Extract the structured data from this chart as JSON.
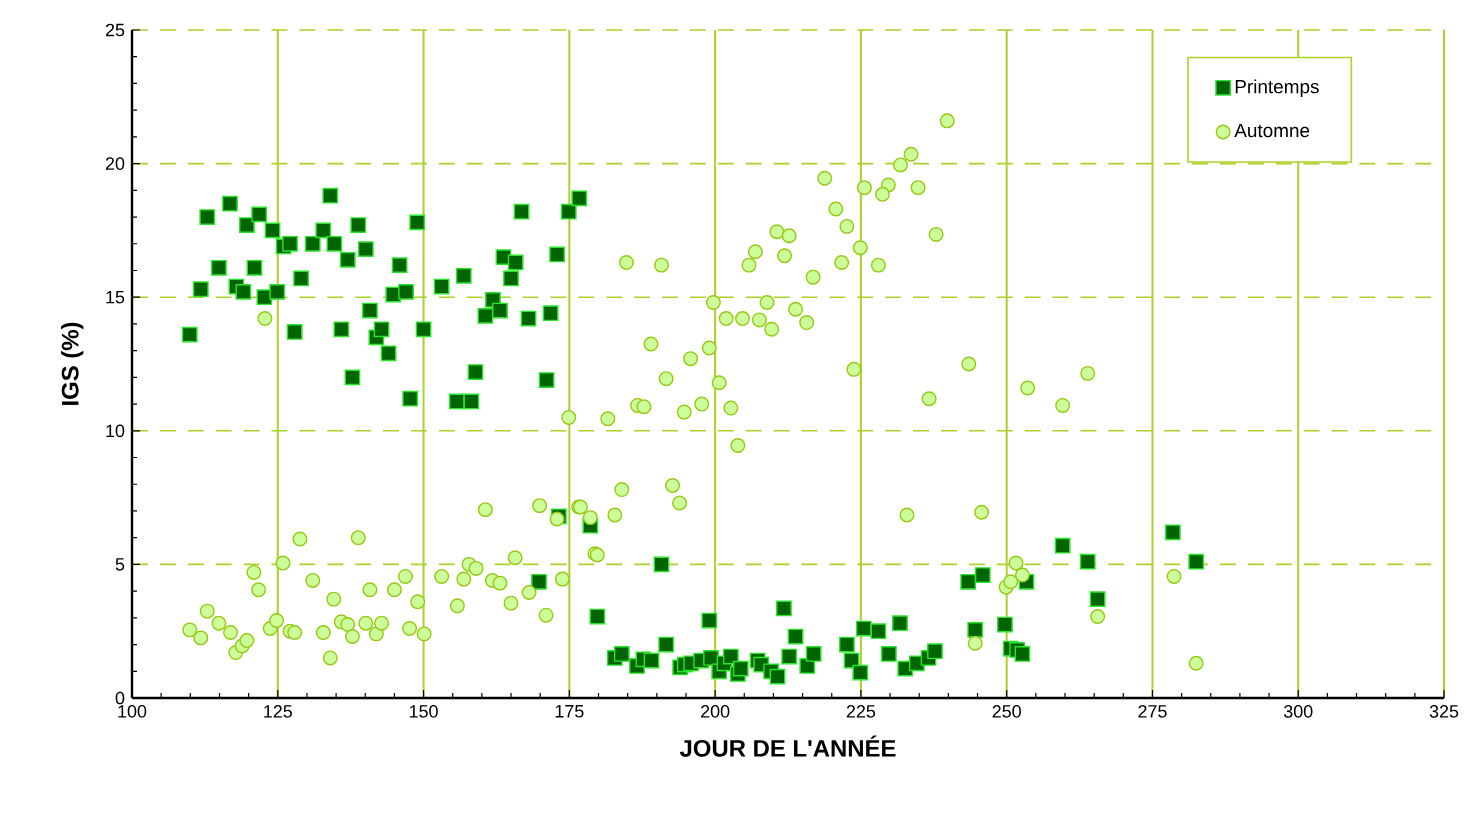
{
  "chart_data": {
    "type": "scatter",
    "xlabel": "JOUR DE L'ANNÉE",
    "ylabel": "IGS  (%)",
    "xlim": [
      100,
      325
    ],
    "xticks": [
      100,
      125,
      150,
      175,
      200,
      225,
      250,
      275,
      300,
      325
    ],
    "ylim": [
      0,
      25
    ],
    "yticks": [
      0,
      5,
      10,
      15,
      20,
      25
    ],
    "grid": true,
    "legend": "top right",
    "series": [
      {
        "name": "Printemps",
        "color": "#006400",
        "marker": "square",
        "x": [
          109.9,
          111.8,
          112.9,
          114.9,
          116.8,
          117.9,
          119.1,
          119.7,
          121.0,
          121.8,
          122.7,
          124.1,
          124.9,
          126.0,
          127.1,
          127.9,
          129.0,
          131.0,
          132.8,
          134.0,
          134.7,
          135.9,
          137.0,
          137.8,
          138.8,
          140.1,
          140.8,
          141.9,
          142.8,
          144.0,
          144.8,
          145.9,
          147.0,
          147.7,
          148.9,
          150.0,
          153.1,
          155.7,
          156.9,
          158.2,
          158.9,
          160.6,
          161.9,
          163.1,
          163.7,
          165.0,
          165.8,
          166.8,
          168.0,
          171.1,
          171.8,
          172.9,
          174.9,
          176.7,
          169.8,
          173.2,
          178.6,
          179.8,
          182.8,
          184.0,
          186.6,
          187.7,
          189.1,
          190.8,
          191.6,
          194.0,
          194.8,
          195.9,
          197.6,
          199.0,
          199.3,
          200.7,
          201.6,
          202.7,
          203.9,
          204.4,
          207.3,
          207.9,
          209.6,
          210.7,
          211.8,
          212.7,
          213.8,
          215.8,
          216.9,
          222.6,
          223.4,
          224.9,
          225.5,
          228.0,
          229.8,
          231.7,
          232.6,
          234.6,
          236.6,
          237.7,
          243.4,
          244.6,
          245.9,
          249.7,
          250.7,
          251.8,
          252.7,
          253.4,
          259.6,
          263.9,
          265.6,
          278.5,
          282.5
        ],
        "values": [
          13.6,
          15.3,
          18.0,
          16.1,
          18.5,
          15.4,
          15.2,
          17.7,
          16.1,
          18.1,
          15.0,
          17.5,
          15.2,
          16.9,
          17.0,
          13.7,
          15.7,
          17.0,
          17.5,
          18.8,
          17.0,
          13.8,
          16.4,
          12.0,
          17.7,
          16.8,
          14.5,
          13.5,
          13.8,
          12.9,
          15.1,
          16.2,
          15.2,
          11.2,
          17.8,
          13.8,
          15.4,
          11.1,
          15.8,
          11.1,
          12.2,
          14.3,
          14.9,
          14.5,
          16.5,
          15.7,
          16.3,
          18.2,
          14.2,
          11.9,
          14.4,
          16.6,
          18.2,
          18.7,
          4.35,
          6.8,
          6.45,
          3.05,
          1.5,
          1.65,
          1.2,
          1.45,
          1.4,
          5.0,
          2.0,
          1.15,
          1.25,
          1.3,
          1.4,
          2.9,
          1.5,
          1.0,
          1.3,
          1.55,
          0.9,
          1.1,
          1.4,
          1.25,
          1.0,
          0.8,
          3.35,
          1.55,
          2.3,
          1.2,
          1.65,
          2.0,
          1.4,
          0.95,
          2.6,
          2.5,
          1.65,
          2.8,
          1.1,
          1.3,
          1.5,
          1.75,
          4.35,
          2.55,
          4.6,
          2.75,
          1.85,
          1.8,
          1.65,
          4.35,
          5.7,
          5.1,
          3.7,
          6.2,
          5.1
        ]
      },
      {
        "name": "Automne",
        "color": "#ccff99",
        "marker": "circle",
        "x": [
          109.9,
          111.8,
          112.9,
          114.9,
          116.9,
          117.8,
          118.9,
          119.7,
          120.9,
          121.7,
          123.7,
          124.8,
          125.9,
          127.1,
          127.9,
          128.8,
          131.0,
          132.8,
          134.0,
          134.6,
          135.9,
          137.0,
          137.8,
          138.8,
          140.1,
          140.8,
          141.9,
          142.8,
          145.0,
          146.9,
          147.6,
          149.0,
          150.1,
          153.1,
          155.8,
          156.9,
          157.8,
          159.0,
          160.6,
          161.8,
          163.1,
          165.0,
          165.7,
          168.1,
          169.9,
          171.0,
          172.9,
          173.8,
          176.6,
          178.6,
          179.4,
          122.8,
          174.9,
          176.9,
          179.8,
          182.8,
          184.0,
          192.7,
          193.9,
          203.9,
          232.9,
          245.7,
          244.6,
          249.9,
          250.7,
          251.6,
          252.7,
          265.6,
          278.7,
          282.5,
          253.6,
          259.6,
          263.9,
          184.8,
          190.8,
          239.8,
          233.6,
          231.8,
          229.7,
          228.7,
          234.8,
          225.6,
          218.8,
          220.7,
          222.6,
          224.9,
          221.7,
          228.0,
          237.9,
          210.6,
          212.7,
          206.9,
          211.9,
          205.8,
          216.8,
          199.7,
          208.9,
          201.9,
          204.7,
          207.6,
          209.7,
          213.8,
          215.7,
          189.0,
          199.0,
          195.8,
          191.6,
          200.7,
          186.7,
          187.8,
          194.7,
          197.7,
          202.7,
          181.6,
          223.8,
          236.7,
          243.5
        ],
        "values": [
          2.55,
          2.25,
          3.25,
          2.8,
          2.45,
          1.7,
          1.95,
          2.15,
          4.7,
          4.05,
          2.6,
          2.9,
          5.05,
          2.5,
          2.45,
          5.95,
          4.4,
          2.45,
          1.5,
          3.7,
          2.85,
          2.75,
          2.3,
          6.0,
          2.8,
          4.05,
          2.4,
          2.8,
          4.05,
          4.55,
          2.6,
          3.6,
          2.4,
          4.55,
          3.45,
          4.45,
          5.0,
          4.85,
          7.05,
          4.4,
          4.3,
          3.55,
          5.25,
          3.95,
          7.2,
          3.1,
          6.7,
          4.45,
          7.15,
          6.75,
          5.4,
          14.2,
          10.5,
          7.15,
          5.35,
          6.85,
          7.8,
          7.95,
          7.3,
          9.45,
          6.85,
          6.95,
          2.05,
          4.15,
          4.35,
          5.05,
          4.6,
          3.05,
          4.55,
          1.3,
          11.6,
          10.95,
          12.15,
          16.3,
          16.2,
          21.6,
          20.35,
          19.95,
          19.2,
          18.85,
          19.1,
          19.1,
          19.45,
          18.3,
          17.65,
          16.85,
          16.3,
          16.2,
          17.35,
          17.45,
          17.3,
          16.7,
          16.55,
          16.2,
          15.75,
          14.8,
          14.8,
          14.2,
          14.2,
          14.15,
          13.8,
          14.55,
          14.05,
          13.25,
          13.1,
          12.7,
          11.95,
          11.8,
          10.95,
          10.9,
          10.7,
          11.0,
          10.85,
          10.45,
          12.3,
          11.2,
          12.5
        ]
      }
    ]
  }
}
